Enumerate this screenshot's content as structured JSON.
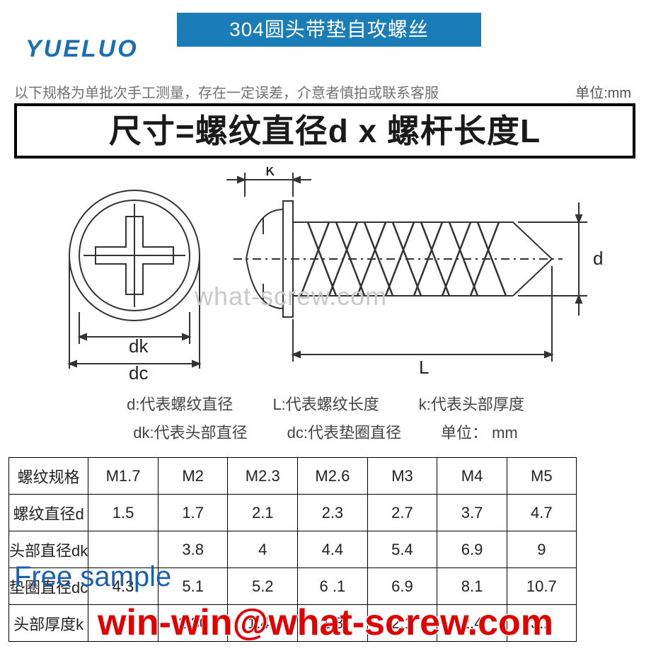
{
  "header": {
    "banner_text": "304圆头带垫自攻螺丝",
    "banner_bg": "#1b7db8",
    "banner_color": "#ffffff",
    "logo_text": "YUELUO",
    "logo_color": "#1b6fb0"
  },
  "notes": {
    "measure_note": "以下规格为单批次手工测量，存在一定误差，介意者慎拍或联系客服",
    "unit_label": "单位:mm"
  },
  "formula": {
    "text": "尺寸=螺纹直径d x 螺杆长度L"
  },
  "diagram": {
    "labels": {
      "dc": "dc",
      "dk": "dk",
      "k": "k",
      "d": "d",
      "l": "L"
    },
    "stroke_color": "#333333",
    "stroke_width": 2
  },
  "legend": {
    "d_desc": "d:代表螺纹直径",
    "l_desc": "L:代表螺纹长度",
    "k_desc": "k:代表头部厚度",
    "dk_desc": "dk:代表头部直径",
    "dc_desc": "dc:代表垫圈直径",
    "unit": "单位： mm"
  },
  "table": {
    "columns": [
      "螺纹规格",
      "M1.7",
      "M2",
      "M2.3",
      "M2.6",
      "M3",
      "M4",
      "M5"
    ],
    "rows": [
      [
        "螺纹直径d",
        "1.5",
        "1.7",
        "2.1",
        "2.3",
        "2.7",
        "3.7",
        "4.7"
      ],
      [
        "头部直径dk",
        "",
        "3.8",
        "4",
        "4.4",
        "5.4",
        "6.9",
        "9"
      ],
      [
        "垫圈直径dc",
        "4.3",
        "5.1",
        "5.2",
        "6 .1",
        "6.9",
        "8.1",
        "10.7"
      ],
      [
        "头部厚度k",
        "",
        "1.30",
        "1.41",
        "1.8",
        "2.1",
        "2.4",
        "3.2"
      ]
    ],
    "col_widths": [
      "14%",
      "12.3%",
      "12.3%",
      "12.3%",
      "12.3%",
      "12.3%",
      "12.3%",
      "12.3%"
    ],
    "border_color": "#000000"
  },
  "watermarks": {
    "center": "what-screw.com",
    "free_sample": "Free sample",
    "email": "win-win@what-screw.com",
    "email_color": "#e00000",
    "sample_color": "#1b5fb0"
  }
}
